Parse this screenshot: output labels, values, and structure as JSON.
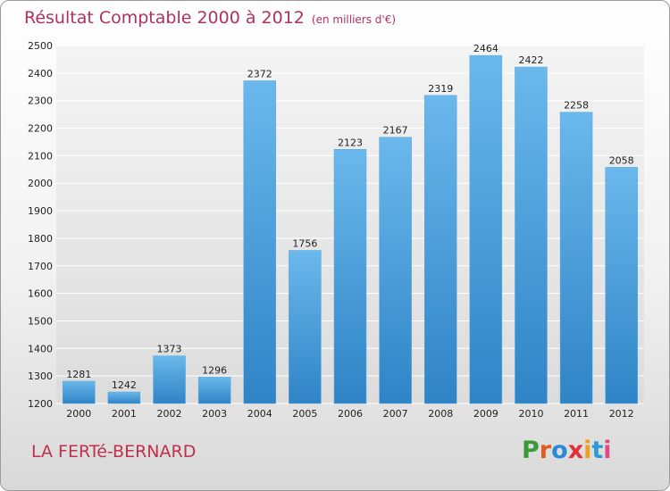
{
  "header": {
    "title": "Résultat Comptable 2000 à 2012",
    "subtitle": "(en milliers d'€)"
  },
  "footer": {
    "town": "LA FERTé-BERNARD",
    "logo_letters": [
      "P",
      "r",
      "o",
      "x",
      "i",
      "t",
      "i"
    ],
    "logo_colors": [
      "#3a9a3a",
      "#e05a20",
      "#2a8ad8",
      "#e0303a",
      "#f0a020",
      "#2a9ad8",
      "#e04a80"
    ]
  },
  "colors": {
    "bar_top": "#6ab8ec",
    "bar_bottom": "#2f84c6",
    "grid": "#ffffff",
    "axis_text": "#222222"
  },
  "chart_data": {
    "type": "bar",
    "title": "Résultat Comptable 2000 à 2012",
    "subtitle": "(en milliers d'€)",
    "categories": [
      "2000",
      "2001",
      "2002",
      "2003",
      "2004",
      "2005",
      "2006",
      "2007",
      "2008",
      "2009",
      "2010",
      "2011",
      "2012"
    ],
    "values": [
      1281,
      1242,
      1373,
      1296,
      2372,
      1756,
      2123,
      2167,
      2319,
      2464,
      2422,
      2258,
      2058
    ],
    "ylim": [
      1200,
      2500
    ],
    "yticks": [
      1200,
      1300,
      1400,
      1500,
      1600,
      1700,
      1800,
      1900,
      2000,
      2100,
      2200,
      2300,
      2400,
      2500
    ],
    "grid": true,
    "data_labels": true,
    "xlabel": "",
    "ylabel": ""
  }
}
